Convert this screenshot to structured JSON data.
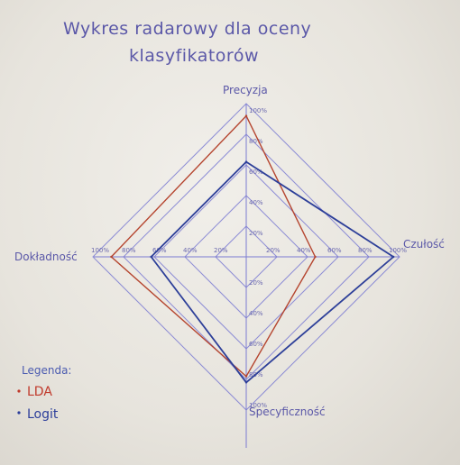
{
  "chart_data": {
    "type": "radar",
    "title_line1": "Wykres radarowy dla oceny",
    "title_line2": "klasyfikatorów",
    "axes": [
      "Precyzja",
      "Czułość",
      "Specyficzność",
      "Dokładność"
    ],
    "axis_labels": {
      "precyzja": "Precyzja",
      "czulosc": "Czułość",
      "specyficznosc": "Specyficzność",
      "dokladnosc": "Dokładność"
    },
    "rings": [
      20,
      40,
      60,
      80,
      100
    ],
    "tick_labels": {
      "top": [
        "20%",
        "40%",
        "60%",
        "80%",
        "100%"
      ],
      "right": [
        "20%",
        "40%",
        "60%",
        "80%",
        "100%"
      ],
      "bottom": [
        "20%",
        "40%",
        "60%",
        "80%",
        "100%"
      ],
      "left": [
        "20%",
        "40%",
        "60%",
        "80%",
        "100%"
      ]
    },
    "rmax": 100,
    "series": [
      {
        "name": "LDA",
        "values": [
          92,
          45,
          78,
          88
        ],
        "color": "#b5452f"
      },
      {
        "name": "Logit",
        "values": [
          62,
          96,
          82,
          62
        ],
        "color": "#2d3f99"
      }
    ],
    "legend": {
      "title": "Legenda:",
      "items": [
        "LDA",
        "Logit"
      ]
    },
    "grid_color": "#7b7bd2"
  }
}
